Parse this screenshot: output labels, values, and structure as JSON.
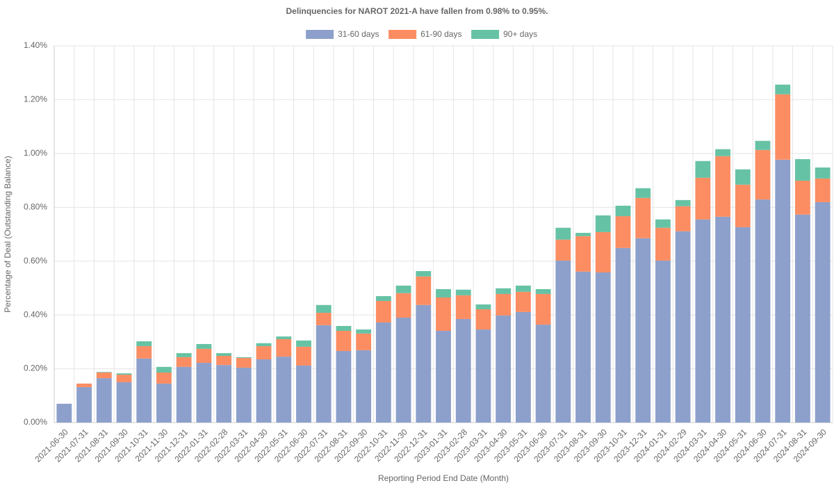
{
  "chart_data": {
    "type": "stacked_bar",
    "title": "Delinquencies for NAROT 2021-A have fallen from 0.98% to 0.95%.",
    "x_label": "Reporting Period End Date (Month)",
    "y_label": "Percentage of Deal (Outstanding Balance)",
    "categories": [
      "2021-06-30",
      "2021-07-31",
      "2021-08-31",
      "2021-09-30",
      "2021-10-31",
      "2021-11-30",
      "2021-12-31",
      "2022-01-31",
      "2022-02-28",
      "2022-03-31",
      "2022-04-30",
      "2022-05-31",
      "2022-06-30",
      "2022-07-31",
      "2022-08-31",
      "2022-09-30",
      "2022-10-31",
      "2022-11-30",
      "2022-12-31",
      "2023-01-31",
      "2023-02-28",
      "2023-03-31",
      "2023-04-30",
      "2023-05-31",
      "2023-06-30",
      "2023-07-31",
      "2023-08-31",
      "2023-09-30",
      "2023-10-31",
      "2023-12-31",
      "2024-01-31",
      "2024-02-29",
      "2024-03-31",
      "2024-04-30",
      "2024-05-31",
      "2024-06-30",
      "2024-07-31",
      "2024-08-31",
      "2024-09-30"
    ],
    "series": [
      {
        "name": "31-60 days",
        "color": "#8da0cb",
        "values": [
          0.07,
          0.132,
          0.165,
          0.15,
          0.238,
          0.145,
          0.207,
          0.222,
          0.214,
          0.204,
          0.235,
          0.245,
          0.212,
          0.362,
          0.266,
          0.269,
          0.372,
          0.39,
          0.437,
          0.341,
          0.385,
          0.346,
          0.398,
          0.411,
          0.364,
          0.602,
          0.561,
          0.558,
          0.649,
          0.685,
          0.602,
          0.711,
          0.755,
          0.765,
          0.726,
          0.829,
          0.977,
          0.773,
          0.819
        ]
      },
      {
        "name": "61-90 days",
        "color": "#fc8d62",
        "values": [
          0,
          0.013,
          0.021,
          0.028,
          0.046,
          0.041,
          0.036,
          0.052,
          0.034,
          0.036,
          0.049,
          0.065,
          0.07,
          0.046,
          0.075,
          0.062,
          0.08,
          0.091,
          0.106,
          0.124,
          0.088,
          0.075,
          0.08,
          0.075,
          0.114,
          0.078,
          0.132,
          0.15,
          0.118,
          0.15,
          0.122,
          0.093,
          0.155,
          0.225,
          0.158,
          0.184,
          0.243,
          0.126,
          0.088
        ]
      },
      {
        "name": "90+ days",
        "color": "#66c2a5",
        "values": [
          0,
          0,
          0.002,
          0.005,
          0.018,
          0.021,
          0.015,
          0.018,
          0.01,
          0.003,
          0.011,
          0.01,
          0.023,
          0.029,
          0.018,
          0.015,
          0.018,
          0.028,
          0.02,
          0.031,
          0.021,
          0.018,
          0.021,
          0.023,
          0.018,
          0.044,
          0.012,
          0.062,
          0.039,
          0.036,
          0.031,
          0.023,
          0.062,
          0.026,
          0.057,
          0.034,
          0.036,
          0.08,
          0.041
        ]
      }
    ],
    "ylim": [
      0,
      1.4
    ],
    "yticks": [
      {
        "value": 0,
        "label": "0.00%"
      },
      {
        "value": 0.2,
        "label": "0.20%"
      },
      {
        "value": 0.4,
        "label": "0.40%"
      },
      {
        "value": 0.6,
        "label": "0.60%"
      },
      {
        "value": 0.8,
        "label": "0.80%"
      },
      {
        "value": 1.0,
        "label": "1.00%"
      },
      {
        "value": 1.2,
        "label": "1.20%"
      },
      {
        "value": 1.4,
        "label": "1.40%"
      }
    ],
    "grid": true,
    "legend": "top"
  }
}
